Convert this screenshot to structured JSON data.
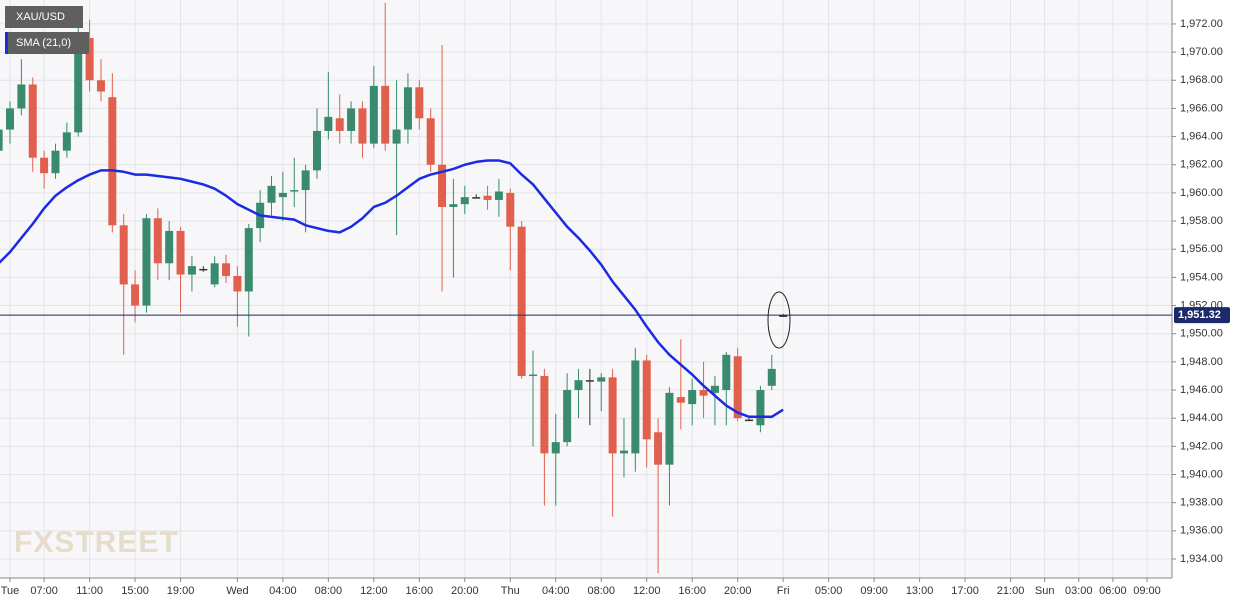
{
  "chart_data": {
    "type": "candlestick",
    "title": "XAU/USD",
    "watermark": "FXSTREET",
    "x": [
      3,
      4,
      5,
      6,
      7,
      8,
      9,
      10,
      11,
      12,
      13,
      14,
      15,
      16,
      17,
      18,
      19,
      20,
      21,
      22,
      23,
      24,
      25,
      26,
      27,
      28,
      29,
      30,
      31,
      32,
      33,
      34,
      35,
      36,
      37,
      38,
      39,
      40,
      41,
      42,
      43,
      44,
      45,
      46,
      47,
      48,
      49,
      50,
      51,
      52,
      53,
      54,
      55,
      56,
      57,
      58,
      59,
      60,
      61,
      62,
      63,
      64,
      65,
      66,
      67,
      68,
      69,
      70,
      71,
      72
    ],
    "open": [
      1963,
      1964.5,
      1966,
      1967.7,
      1962.5,
      1961.4,
      1963,
      1964.3,
      1971,
      1968,
      1966.8,
      1957.7,
      1953.5,
      1952,
      1958.2,
      1955,
      1957.3,
      1954.2,
      1954.6,
      1953.5,
      1955,
      1954.1,
      1953,
      1957.5,
      1959.3,
      1959.7,
      1960.1,
      1960.2,
      1961.6,
      1964.4,
      1965.3,
      1964.4,
      1966,
      1963.5,
      1967.6,
      1963.5,
      1964.5,
      1967.5,
      1965.3,
      1962,
      1959,
      1959.2,
      1959.7,
      1959.8,
      1959.5,
      1960,
      1957.6,
      1947,
      1947,
      1941.5,
      1942.3,
      1946,
      1946.7,
      1946.6,
      1946.9,
      1941.5,
      1941.5,
      1948.1,
      1943,
      1940.7,
      1945.5,
      1945,
      1946,
      1945.8,
      1946,
      1948.4,
      1943.9,
      1943.5,
      1946.3,
      1951.3
    ],
    "high": [
      1965.5,
      1966.5,
      1969.5,
      1968.2,
      1963,
      1963.5,
      1965,
      1972,
      1972.3,
      1969.5,
      1968.5,
      1958.5,
      1954.5,
      1958.5,
      1958.9,
      1958,
      1957.6,
      1955.5,
      1954.8,
      1955.5,
      1955.6,
      1954.8,
      1957.8,
      1960.2,
      1961.2,
      1961.5,
      1962.5,
      1962,
      1966,
      1968.6,
      1967,
      1966.5,
      1966.5,
      1969,
      1973.5,
      1968,
      1968.5,
      1968,
      1966,
      1970.5,
      1961,
      1960.5,
      1959.9,
      1960.5,
      1961,
      1960.3,
      1958,
      1948.8,
      1947.5,
      1944.3,
      1947.2,
      1947.5,
      1947.5,
      1947.2,
      1947.5,
      1944,
      1949,
      1948.5,
      1944,
      1946.2,
      1949.6,
      1946.8,
      1948,
      1947,
      1948.7,
      1949,
      1944,
      1946.3,
      1948.5,
      1951.4
    ],
    "low": [
      1962,
      1963.5,
      1965.5,
      1961.5,
      1960.3,
      1961,
      1962.5,
      1964,
      1967.2,
      1966.5,
      1957.2,
      1948.5,
      1950.8,
      1951.5,
      1953.8,
      1953.8,
      1951.5,
      1953,
      1954.4,
      1953.3,
      1953.6,
      1950.5,
      1949.8,
      1956.5,
      1958.4,
      1958,
      1959,
      1957.2,
      1961,
      1963.8,
      1963.5,
      1963.5,
      1962.5,
      1963.2,
      1963,
      1957,
      1963.5,
      1964.5,
      1961.5,
      1953,
      1954,
      1958.5,
      1959.6,
      1958.8,
      1958.3,
      1954.5,
      1946.8,
      1942,
      1937.8,
      1937.8,
      1942,
      1944,
      1943.5,
      1944.5,
      1937,
      1939.8,
      1940.2,
      1940.5,
      1933,
      1937.8,
      1943.2,
      1943.5,
      1944,
      1943.5,
      1943.5,
      1943.8,
      1943.8,
      1943,
      1946,
      1951.2
    ],
    "close": [
      1964.5,
      1966,
      1967.7,
      1962.5,
      1961.4,
      1963,
      1964.3,
      1971,
      1968,
      1967.2,
      1957.7,
      1953.5,
      1952,
      1958.2,
      1955,
      1957.3,
      1954.2,
      1954.8,
      1954.6,
      1955,
      1954.1,
      1953,
      1957.5,
      1959.3,
      1960.5,
      1960,
      1960.2,
      1961.6,
      1964.4,
      1965.4,
      1964.4,
      1966,
      1963.5,
      1967.6,
      1963.5,
      1964.5,
      1967.5,
      1965.3,
      1962,
      1959,
      1959.2,
      1959.7,
      1959.7,
      1959.5,
      1960.1,
      1957.6,
      1947,
      1947.1,
      1941.5,
      1942.3,
      1946,
      1946.7,
      1946.7,
      1946.9,
      1941.5,
      1941.7,
      1948.1,
      1942.5,
      1940.7,
      1945.8,
      1945.1,
      1946,
      1945.6,
      1946.3,
      1948.5,
      1944,
      1943.9,
      1946,
      1947.5,
      1951.3
    ],
    "up_color": "#3a8a6e",
    "down_color": "#e0604d",
    "flat_color": "#333333",
    "series": [
      {
        "name": "SMA (21,0)",
        "color": "#1b2be0",
        "values": [
          1955.0,
          1955.8,
          1956.8,
          1957.8,
          1958.9,
          1959.8,
          1960.4,
          1960.9,
          1961.3,
          1961.6,
          1961.6,
          1961.5,
          1961.3,
          1961.3,
          1961.2,
          1961.1,
          1961.0,
          1960.8,
          1960.6,
          1960.3,
          1959.8,
          1959.2,
          1958.8,
          1958.4,
          1958.3,
          1958.2,
          1958.1,
          1957.7,
          1957.5,
          1957.3,
          1957.2,
          1957.6,
          1958.2,
          1959.0,
          1959.3,
          1959.8,
          1960.4,
          1961.0,
          1961.3,
          1961.5,
          1961.7,
          1962.0,
          1962.2,
          1962.3,
          1962.3,
          1962.1,
          1961.3,
          1960.6,
          1959.6,
          1958.6,
          1957.6,
          1956.8,
          1955.9,
          1954.9,
          1953.7,
          1952.7,
          1951.7,
          1950.5,
          1949.4,
          1948.5,
          1947.8,
          1947.1,
          1946.3,
          1945.6,
          1944.9,
          1944.4,
          1944.1,
          1944.1,
          1944.1,
          1944.6
        ]
      }
    ],
    "current_price": {
      "value": 1951.32,
      "label": "1,951.32"
    },
    "xlim": [
      3.12,
      106.2
    ],
    "ylim": [
      1932.65,
      1973.7
    ],
    "xticks": [
      {
        "value": 4,
        "label": "Tue"
      },
      {
        "value": 7,
        "label": "07:00"
      },
      {
        "value": 11,
        "label": "11:00"
      },
      {
        "value": 15,
        "label": "15:00"
      },
      {
        "value": 19,
        "label": "19:00"
      },
      {
        "value": 24,
        "label": "Wed"
      },
      {
        "value": 28,
        "label": "04:00"
      },
      {
        "value": 32,
        "label": "08:00"
      },
      {
        "value": 36,
        "label": "12:00"
      },
      {
        "value": 40,
        "label": "16:00"
      },
      {
        "value": 44,
        "label": "20:00"
      },
      {
        "value": 48,
        "label": "Thu"
      },
      {
        "value": 52,
        "label": "04:00"
      },
      {
        "value": 56,
        "label": "08:00"
      },
      {
        "value": 60,
        "label": "12:00"
      },
      {
        "value": 64,
        "label": "16:00"
      },
      {
        "value": 68,
        "label": "20:00"
      },
      {
        "value": 72,
        "label": "Fri"
      },
      {
        "value": 76,
        "label": "05:00"
      },
      {
        "value": 80,
        "label": "09:00"
      },
      {
        "value": 84,
        "label": "13:00"
      },
      {
        "value": 88,
        "label": "17:00"
      },
      {
        "value": 92,
        "label": "21:00"
      },
      {
        "value": 95,
        "label": "Sun"
      },
      {
        "value": 98,
        "label": "03:00"
      },
      {
        "value": 101,
        "label": "06:00"
      },
      {
        "value": 104,
        "label": "09:00"
      }
    ],
    "yticks": [
      {
        "value": 1934,
        "label": "1,934.00"
      },
      {
        "value": 1936,
        "label": "1,936.00"
      },
      {
        "value": 1938,
        "label": "1,938.00"
      },
      {
        "value": 1940,
        "label": "1,940.00"
      },
      {
        "value": 1942,
        "label": "1,942.00"
      },
      {
        "value": 1944,
        "label": "1,944.00"
      },
      {
        "value": 1946,
        "label": "1,946.00"
      },
      {
        "value": 1948,
        "label": "1,948.00"
      },
      {
        "value": 1950,
        "label": "1,950.00"
      },
      {
        "value": 1952,
        "label": "1,952.00"
      },
      {
        "value": 1954,
        "label": "1,954.00"
      },
      {
        "value": 1956,
        "label": "1,956.00"
      },
      {
        "value": 1958,
        "label": "1,958.00"
      },
      {
        "value": 1960,
        "label": "1,960.00"
      },
      {
        "value": 1962,
        "label": "1,962.00"
      },
      {
        "value": 1964,
        "label": "1,964.00"
      },
      {
        "value": 1966,
        "label": "1,966.00"
      },
      {
        "value": 1968,
        "label": "1,968.00"
      },
      {
        "value": 1970,
        "label": "1,970.00"
      },
      {
        "value": 1972,
        "label": "1,972.00"
      }
    ],
    "grid": true
  }
}
